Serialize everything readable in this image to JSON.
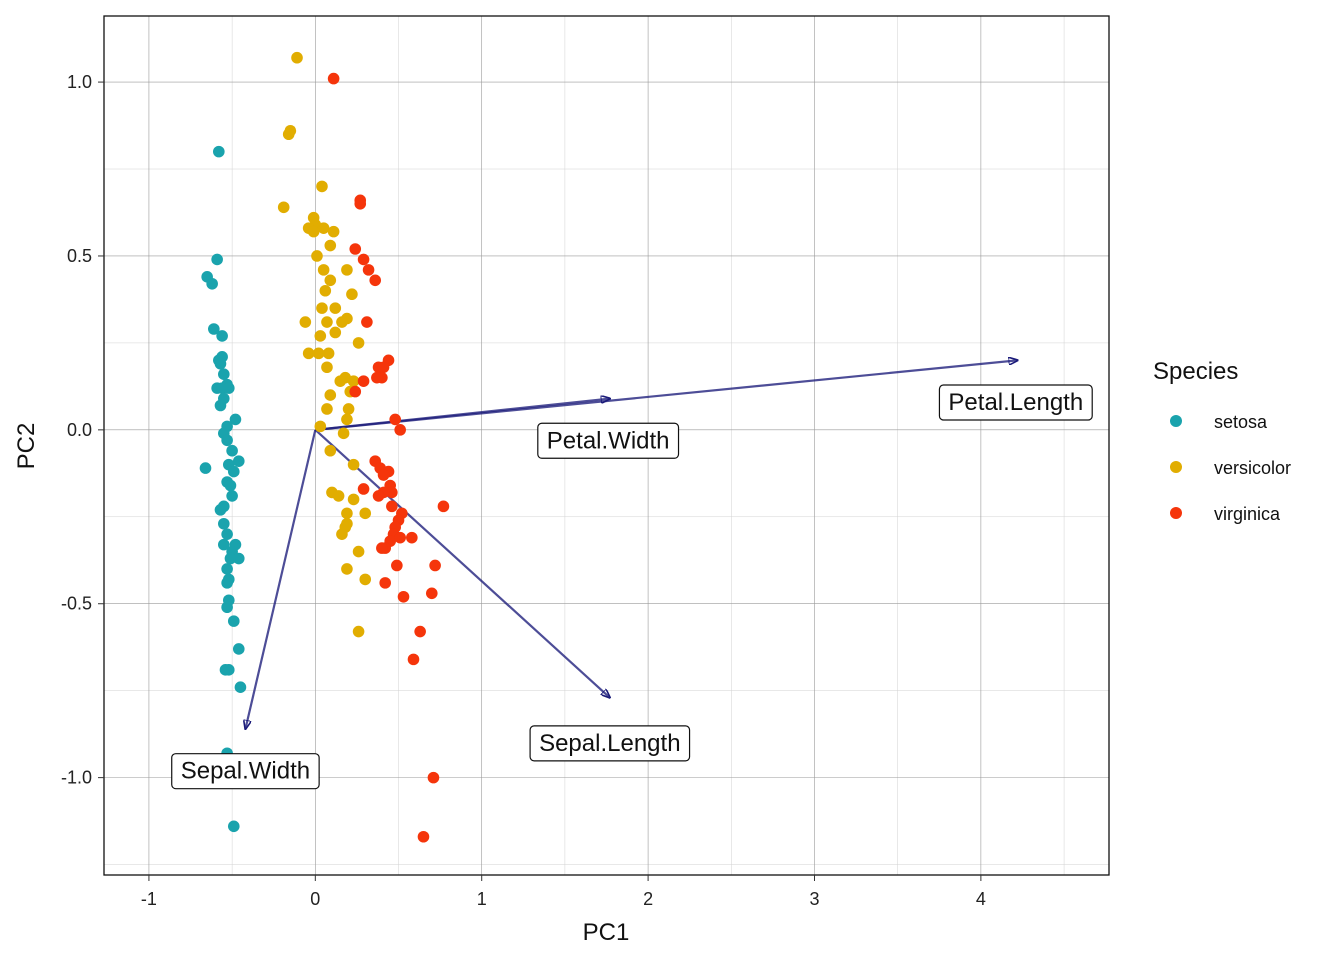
{
  "chart_data": {
    "type": "scatter",
    "xlabel": "PC1",
    "ylabel": "PC2",
    "xlim": [
      -1.27,
      4.77
    ],
    "ylim": [
      -1.28,
      1.19
    ],
    "x_ticks": [
      -1,
      0,
      1,
      2,
      3,
      4
    ],
    "x_tick_labels": [
      "-1",
      "0",
      "1",
      "2",
      "3",
      "4"
    ],
    "y_ticks": [
      -1.0,
      -0.5,
      0.0,
      0.5,
      1.0
    ],
    "y_tick_labels": [
      "-1.0",
      "-0.5",
      "0.0",
      "0.5",
      "1.0"
    ],
    "grid": true,
    "legend": {
      "title": "Species",
      "position": "right",
      "entries": [
        "setosa",
        "versicolor",
        "virginica"
      ]
    },
    "colors": {
      "setosa": "#1AA3AD",
      "versicolor": "#E1AD01",
      "virginica": "#F5350B",
      "arrow": "#1B1B7A"
    },
    "series": [
      {
        "name": "setosa",
        "points": [
          [
            -0.58,
            0.8
          ],
          [
            -0.59,
            0.49
          ],
          [
            -0.65,
            0.44
          ],
          [
            -0.62,
            0.42
          ],
          [
            -0.61,
            0.29
          ],
          [
            -0.56,
            0.27
          ],
          [
            -0.56,
            0.21
          ],
          [
            -0.58,
            0.2
          ],
          [
            -0.57,
            0.19
          ],
          [
            -0.55,
            0.16
          ],
          [
            -0.53,
            0.13
          ],
          [
            -0.59,
            0.12
          ],
          [
            -0.56,
            0.12
          ],
          [
            -0.52,
            0.12
          ],
          [
            -0.55,
            0.09
          ],
          [
            -0.57,
            0.07
          ],
          [
            -0.48,
            0.03
          ],
          [
            -0.53,
            0.01
          ],
          [
            -0.55,
            -0.01
          ],
          [
            -0.53,
            -0.03
          ],
          [
            -0.5,
            -0.06
          ],
          [
            -0.46,
            -0.09
          ],
          [
            -0.52,
            -0.1
          ],
          [
            -0.66,
            -0.11
          ],
          [
            -0.49,
            -0.12
          ],
          [
            -0.53,
            -0.15
          ],
          [
            -0.51,
            -0.16
          ],
          [
            -0.5,
            -0.19
          ],
          [
            -0.55,
            -0.22
          ],
          [
            -0.57,
            -0.23
          ],
          [
            -0.55,
            -0.27
          ],
          [
            -0.53,
            -0.3
          ],
          [
            -0.55,
            -0.33
          ],
          [
            -0.48,
            -0.33
          ],
          [
            -0.5,
            -0.35
          ],
          [
            -0.51,
            -0.37
          ],
          [
            -0.46,
            -0.37
          ],
          [
            -0.53,
            -0.4
          ],
          [
            -0.52,
            -0.43
          ],
          [
            -0.53,
            -0.44
          ],
          [
            -0.52,
            -0.49
          ],
          [
            -0.53,
            -0.51
          ],
          [
            -0.49,
            -0.55
          ],
          [
            -0.46,
            -0.63
          ],
          [
            -0.54,
            -0.69
          ],
          [
            -0.52,
            -0.69
          ],
          [
            -0.45,
            -0.74
          ],
          [
            -0.53,
            -0.93
          ],
          [
            -0.49,
            -1.14
          ]
        ]
      },
      {
        "name": "versicolor",
        "points": [
          [
            -0.11,
            1.07
          ],
          [
            -0.15,
            0.86
          ],
          [
            -0.16,
            0.85
          ],
          [
            0.04,
            0.7
          ],
          [
            -0.19,
            0.64
          ],
          [
            -0.01,
            0.61
          ],
          [
            0.0,
            0.59
          ],
          [
            0.05,
            0.58
          ],
          [
            -0.04,
            0.58
          ],
          [
            -0.01,
            0.57
          ],
          [
            0.11,
            0.57
          ],
          [
            0.09,
            0.53
          ],
          [
            0.01,
            0.5
          ],
          [
            0.19,
            0.46
          ],
          [
            0.05,
            0.46
          ],
          [
            0.09,
            0.43
          ],
          [
            0.06,
            0.4
          ],
          [
            0.22,
            0.39
          ],
          [
            0.04,
            0.35
          ],
          [
            0.12,
            0.35
          ],
          [
            0.19,
            0.32
          ],
          [
            -0.06,
            0.31
          ],
          [
            0.07,
            0.31
          ],
          [
            0.16,
            0.31
          ],
          [
            0.12,
            0.28
          ],
          [
            0.03,
            0.27
          ],
          [
            0.26,
            0.25
          ],
          [
            0.08,
            0.22
          ],
          [
            0.02,
            0.22
          ],
          [
            -0.04,
            0.22
          ],
          [
            0.07,
            0.18
          ],
          [
            0.18,
            0.15
          ],
          [
            0.15,
            0.14
          ],
          [
            0.23,
            0.14
          ],
          [
            0.21,
            0.11
          ],
          [
            0.09,
            0.1
          ],
          [
            0.2,
            0.06
          ],
          [
            0.07,
            0.06
          ],
          [
            0.19,
            0.03
          ],
          [
            0.03,
            0.01
          ],
          [
            0.17,
            -0.01
          ],
          [
            0.09,
            -0.06
          ],
          [
            0.23,
            -0.1
          ],
          [
            0.1,
            -0.18
          ],
          [
            0.14,
            -0.19
          ],
          [
            0.23,
            -0.2
          ],
          [
            0.19,
            -0.24
          ],
          [
            0.3,
            -0.24
          ],
          [
            0.19,
            -0.27
          ],
          [
            0.18,
            -0.28
          ],
          [
            0.16,
            -0.3
          ],
          [
            0.26,
            -0.35
          ],
          [
            0.19,
            -0.4
          ],
          [
            0.3,
            -0.43
          ],
          [
            0.26,
            -0.58
          ]
        ]
      },
      {
        "name": "virginica",
        "points": [
          [
            0.11,
            1.01
          ],
          [
            0.27,
            0.66
          ],
          [
            0.27,
            0.65
          ],
          [
            0.24,
            0.52
          ],
          [
            0.29,
            0.49
          ],
          [
            0.32,
            0.46
          ],
          [
            0.36,
            0.43
          ],
          [
            0.31,
            0.31
          ],
          [
            0.44,
            0.2
          ],
          [
            0.38,
            0.18
          ],
          [
            0.41,
            0.18
          ],
          [
            0.4,
            0.15
          ],
          [
            0.37,
            0.15
          ],
          [
            0.29,
            0.14
          ],
          [
            0.24,
            0.11
          ],
          [
            0.48,
            0.03
          ],
          [
            0.51,
            0.0
          ],
          [
            0.36,
            -0.09
          ],
          [
            0.39,
            -0.11
          ],
          [
            0.44,
            -0.12
          ],
          [
            0.41,
            -0.13
          ],
          [
            0.45,
            -0.16
          ],
          [
            0.29,
            -0.17
          ],
          [
            0.46,
            -0.18
          ],
          [
            0.41,
            -0.18
          ],
          [
            0.38,
            -0.19
          ],
          [
            0.46,
            -0.22
          ],
          [
            0.77,
            -0.22
          ],
          [
            0.52,
            -0.24
          ],
          [
            0.5,
            -0.26
          ],
          [
            0.48,
            -0.28
          ],
          [
            0.47,
            -0.3
          ],
          [
            0.45,
            -0.32
          ],
          [
            0.51,
            -0.31
          ],
          [
            0.58,
            -0.31
          ],
          [
            0.42,
            -0.34
          ],
          [
            0.4,
            -0.34
          ],
          [
            0.49,
            -0.39
          ],
          [
            0.72,
            -0.39
          ],
          [
            0.42,
            -0.44
          ],
          [
            0.53,
            -0.48
          ],
          [
            0.7,
            -0.47
          ],
          [
            0.63,
            -0.58
          ],
          [
            0.59,
            -0.66
          ],
          [
            0.71,
            -1.0
          ],
          [
            0.65,
            -1.17
          ]
        ]
      }
    ],
    "arrows": [
      {
        "label": "Petal.Length",
        "x": 4.22,
        "y": 0.2,
        "label_x": 4.21,
        "label_y": 0.08
      },
      {
        "label": "Petal.Width",
        "x": 1.77,
        "y": 0.09,
        "label_x": 1.76,
        "label_y": -0.03
      },
      {
        "label": "Sepal.Length",
        "x": 1.77,
        "y": -0.77,
        "label_x": 1.77,
        "label_y": -0.9
      },
      {
        "label": "Sepal.Width",
        "x": -0.42,
        "y": -0.86,
        "label_x": -0.42,
        "label_y": -0.98
      }
    ]
  }
}
